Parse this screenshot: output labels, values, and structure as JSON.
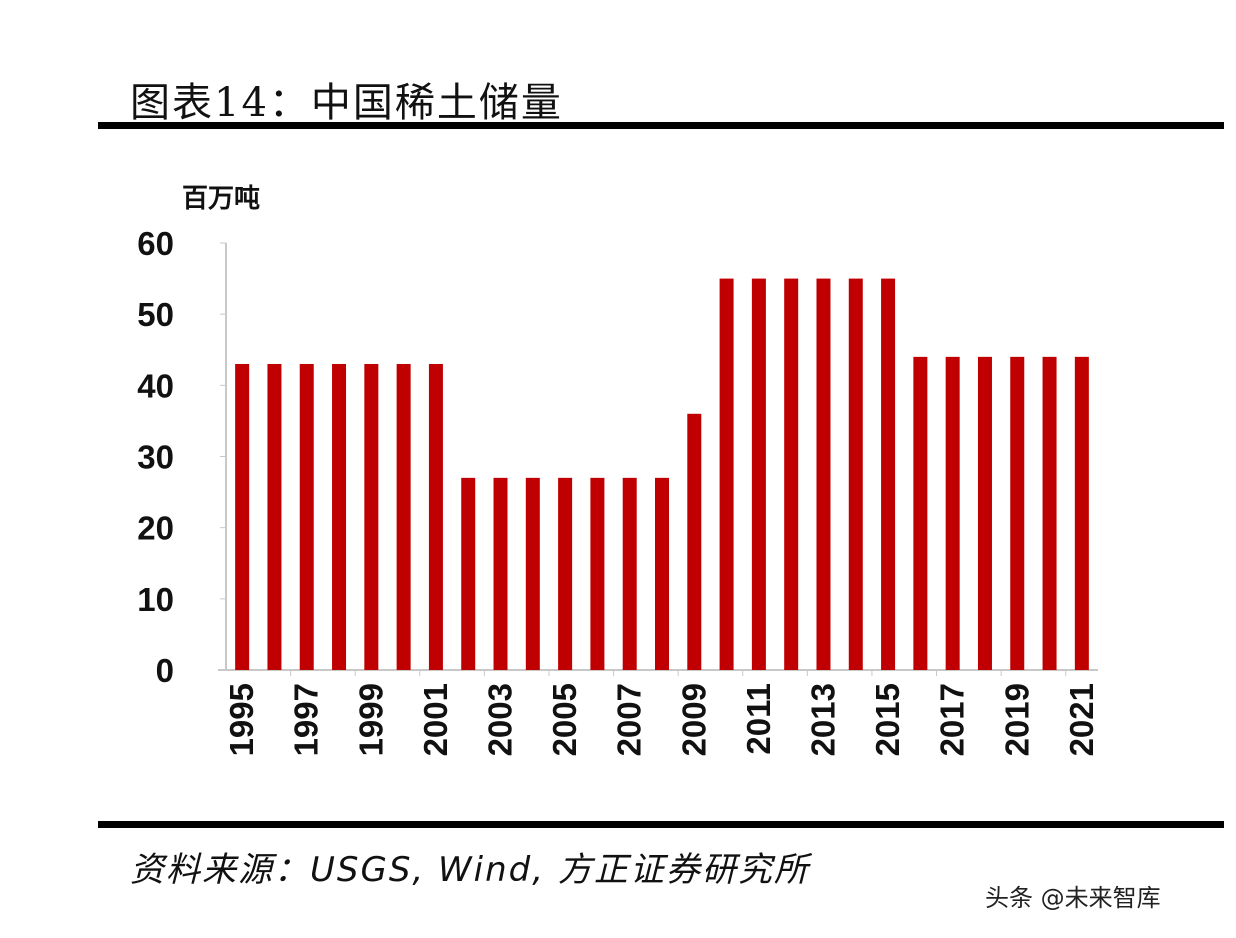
{
  "title": "图表14：中国稀土储量",
  "source": "资料来源：USGS, Wind, 方正证券研究所",
  "watermark": "头条 @未来智库",
  "chart_data": {
    "type": "bar",
    "title": "图表14：中国稀土储量",
    "ylabel": "百万吨",
    "xlabel": "",
    "ylim": [
      0,
      60
    ],
    "yticks": [
      0,
      10,
      20,
      30,
      40,
      50,
      60
    ],
    "grid": false,
    "bar_color": "#C00000",
    "categories": [
      "1995",
      "1996",
      "1997",
      "1998",
      "1999",
      "2000",
      "2001",
      "2002",
      "2003",
      "2004",
      "2005",
      "2006",
      "2007",
      "2008",
      "2009",
      "2010",
      "2011",
      "2012",
      "2013",
      "2014",
      "2015",
      "2016",
      "2017",
      "2018",
      "2019",
      "2020",
      "2021"
    ],
    "xtick_labels": [
      "1995",
      "1997",
      "1999",
      "2001",
      "2003",
      "2005",
      "2007",
      "2009",
      "2011",
      "2013",
      "2015",
      "2017",
      "2019",
      "2021"
    ],
    "values": [
      43,
      43,
      43,
      43,
      43,
      43,
      43,
      27,
      27,
      27,
      27,
      27,
      27,
      27,
      36,
      55,
      55,
      55,
      55,
      55,
      55,
      44,
      44,
      44,
      44,
      44,
      44
    ]
  }
}
